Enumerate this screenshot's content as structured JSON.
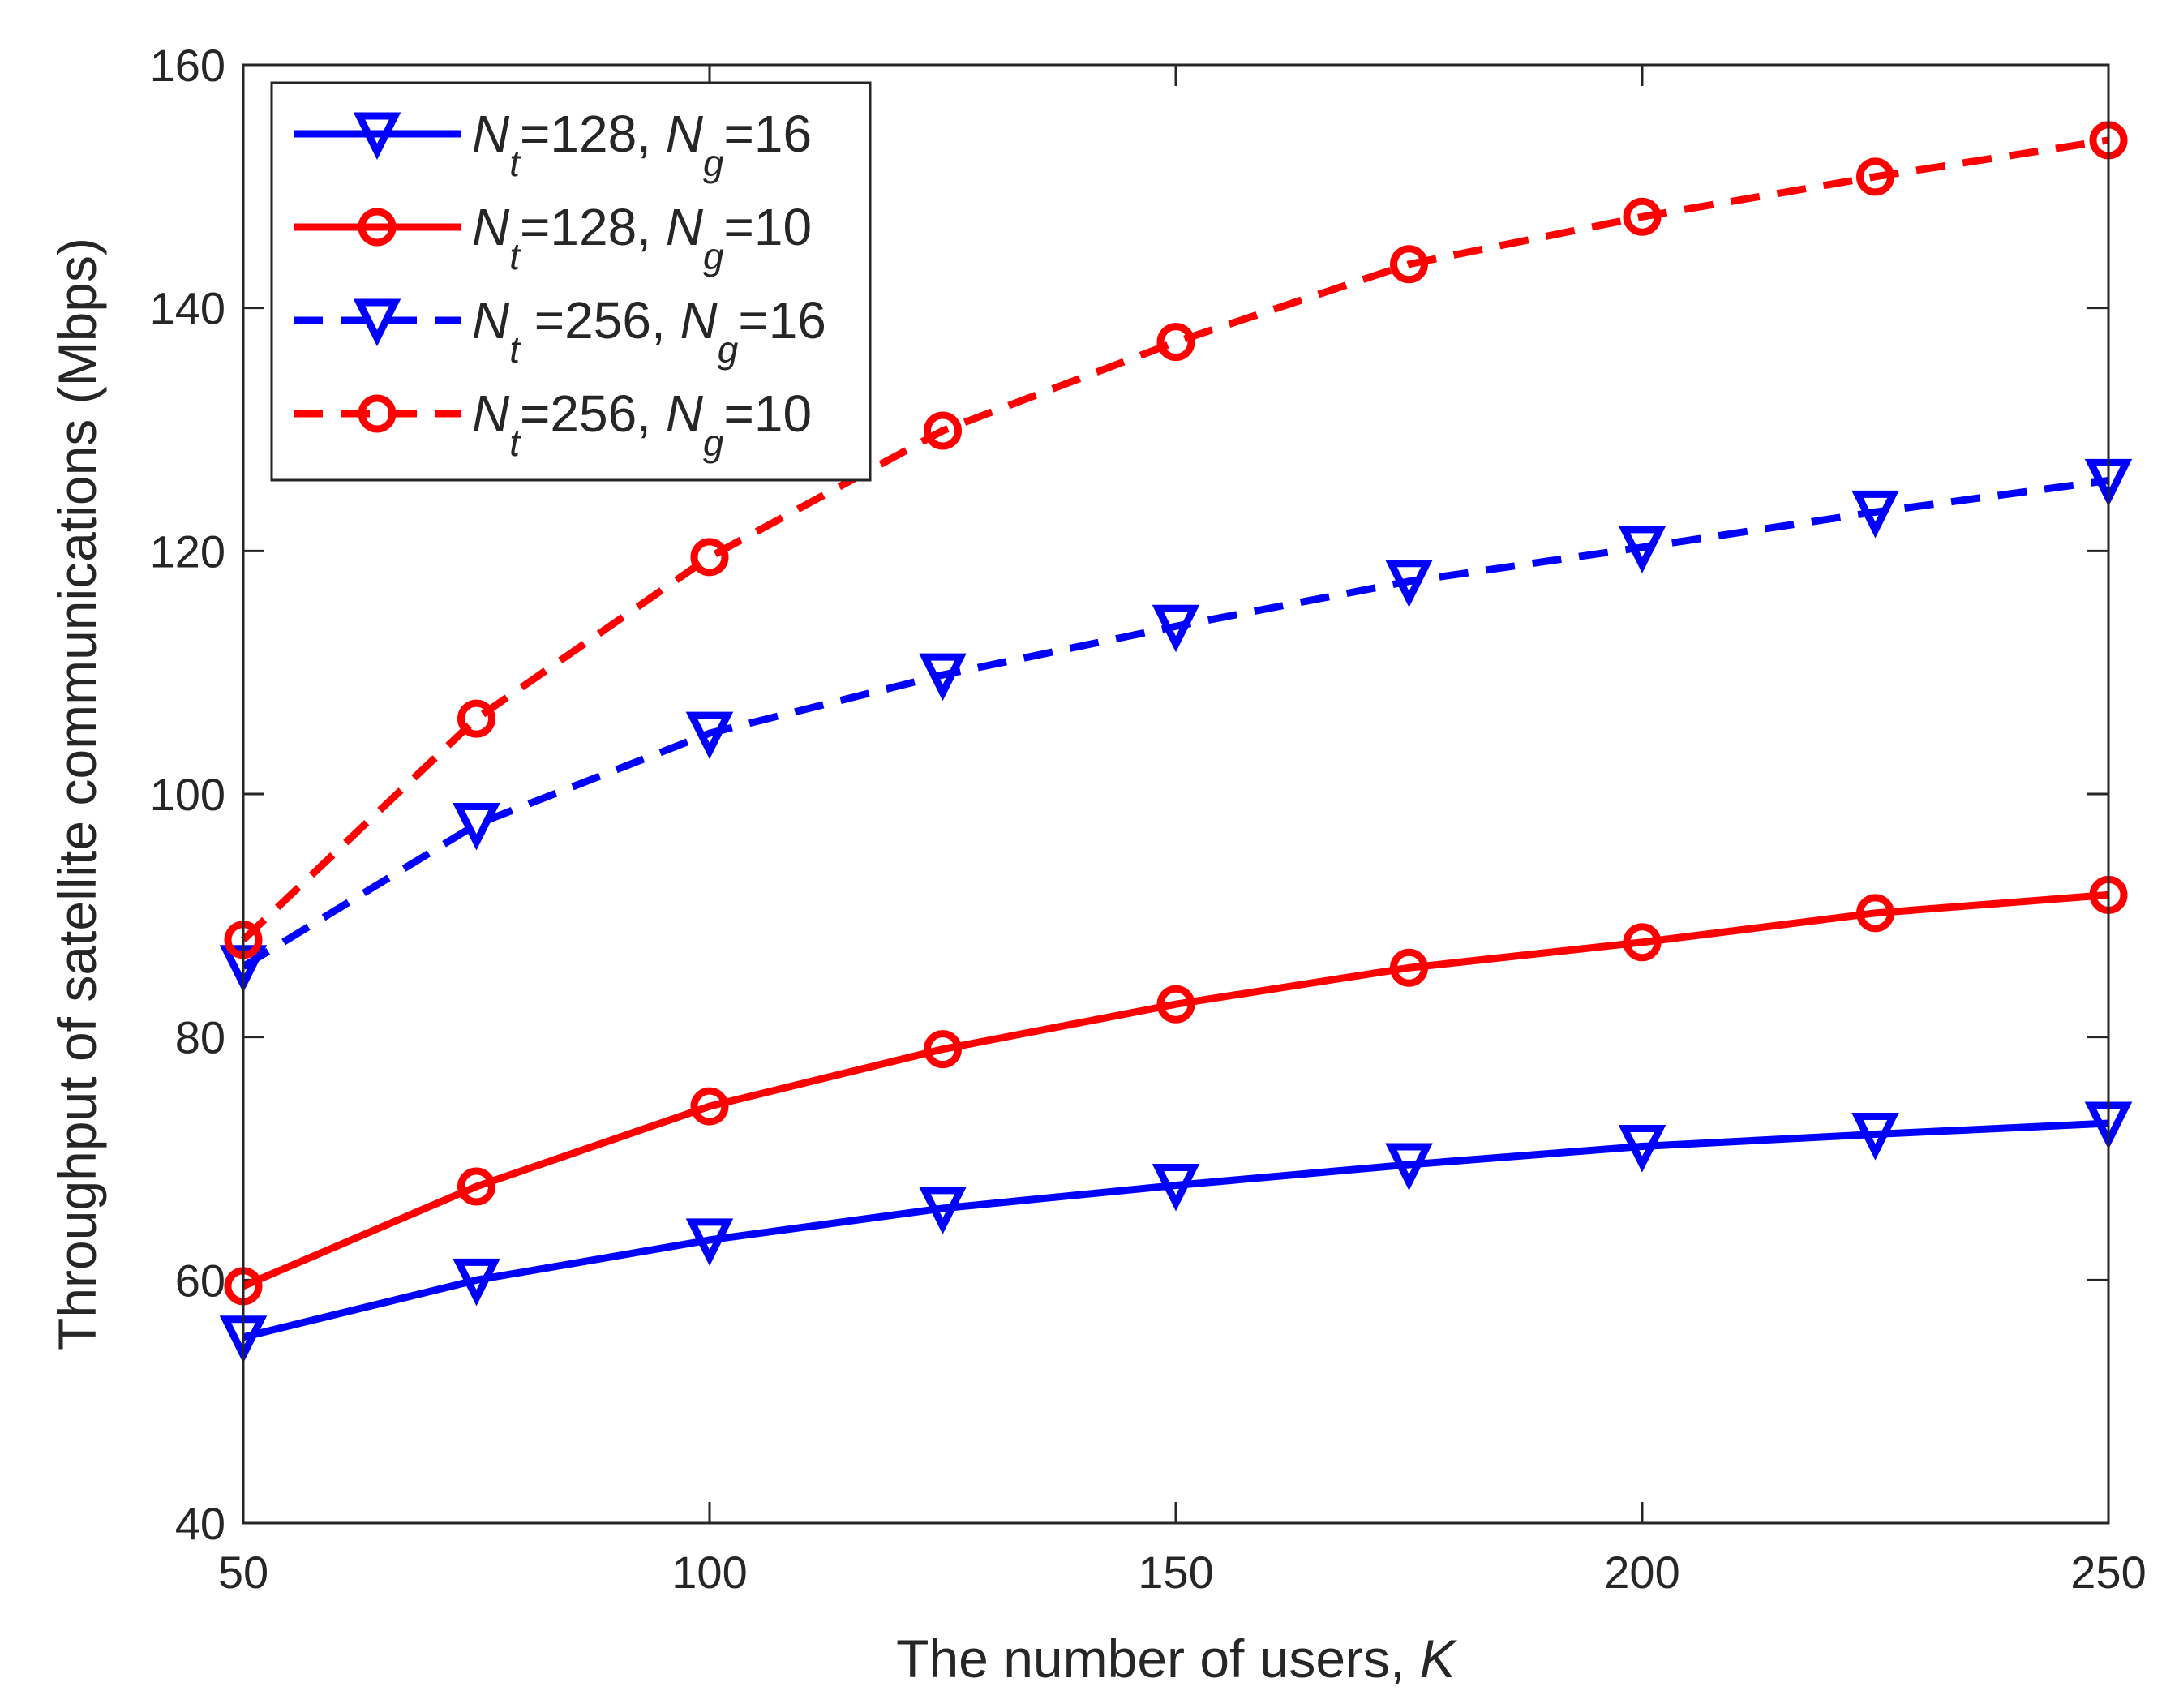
{
  "chart_data": {
    "type": "line",
    "title": "",
    "xlabel_prefix": "The number of users, ",
    "xlabel_var": "K",
    "ylabel": "Throughput of satellite communications (Mbps)",
    "xlim": [
      50,
      250
    ],
    "ylim": [
      40,
      160
    ],
    "x_ticks": [
      50,
      100,
      150,
      200,
      250
    ],
    "y_ticks": [
      40,
      60,
      80,
      100,
      120,
      140,
      160
    ],
    "x": [
      50,
      75,
      100,
      125,
      150,
      175,
      200,
      225,
      250
    ],
    "grid": false,
    "legend_position": "top-left",
    "series": [
      {
        "name": "Nt=128, Ng=16",
        "legend": {
          "n1": "N",
          "s1": "t",
          "v1": "=128, ",
          "n2": "N",
          "s2": "g",
          "v2": "=16"
        },
        "color": "#0000ff",
        "linestyle": "solid",
        "marker": "triangle-down",
        "values": [
          55.3,
          60.0,
          63.3,
          65.9,
          67.8,
          69.5,
          71.0,
          72.0,
          72.9
        ]
      },
      {
        "name": "Nt=128, Ng=10",
        "legend": {
          "n1": "N",
          "s1": "t",
          "v1": "=128, ",
          "n2": "N",
          "s2": "g",
          "v2": "=10"
        },
        "color": "#ff0000",
        "linestyle": "solid",
        "marker": "circle",
        "values": [
          59.5,
          67.7,
          74.3,
          79.0,
          82.7,
          85.7,
          87.8,
          90.2,
          91.7
        ]
      },
      {
        "name": "Nt =256, Ng=16",
        "legend": {
          "n1": "N",
          "s1": "t",
          "v1": " =256, ",
          "n2": "N",
          "s2": "g",
          "v2": "=16"
        },
        "color": "#0000ff",
        "linestyle": "dashed",
        "marker": "triangle-down",
        "values": [
          85.8,
          97.5,
          105.0,
          109.8,
          113.8,
          117.5,
          120.3,
          123.2,
          125.8
        ]
      },
      {
        "name": "Nt=256, Ng=10",
        "legend": {
          "n1": "N",
          "s1": "t",
          "v1": "=256, ",
          "n2": "N",
          "s2": "g",
          "v2": "=10"
        },
        "color": "#ff0000",
        "linestyle": "dashed",
        "marker": "circle",
        "values": [
          88.0,
          106.2,
          119.5,
          129.9,
          137.2,
          143.6,
          147.5,
          150.8,
          153.8
        ]
      }
    ]
  }
}
